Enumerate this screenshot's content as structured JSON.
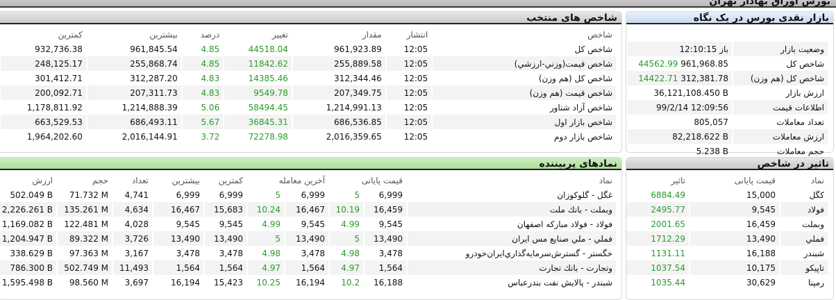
{
  "title": "بورس اوراق بهادار تهران",
  "colors": {
    "positive": "#2a9a2a"
  },
  "selected_indices": {
    "title": "شاخص های منتخب",
    "headers": [
      "شاخص",
      "انتشار",
      "مقدار",
      "تغییر",
      "درصد",
      "بیشترین",
      "کمترین"
    ],
    "rows": [
      [
        "شاخص کل",
        "12:05",
        "961,923.89",
        "44518.04",
        "4.85",
        "961,845.54",
        "932,736.38"
      ],
      [
        "شاخص قيمت(وزني-ارزشي)",
        "12:05",
        "255,889.58",
        "11842.62",
        "4.85",
        "255,868.74",
        "248,125.17"
      ],
      [
        "شاخص کل (هم وزن)",
        "12:05",
        "312,344.46",
        "14385.46",
        "4.83",
        "312,287.20",
        "301,412.71"
      ],
      [
        "شاخص قيمت (هم وزن)",
        "12:05",
        "207,349.75",
        "9549.78",
        "4.83",
        "207,311.73",
        "200,092.71"
      ],
      [
        "شاخص آزاد شناور",
        "12:05",
        "1,214,991.13",
        "58494.45",
        "5.06",
        "1,214,888.39",
        "1,178,811.92"
      ],
      [
        "شاخص بازار اول",
        "12:05",
        "686,536.85",
        "36845.31",
        "5.67",
        "686,493.11",
        "663,529.53"
      ],
      [
        "شاخص بازار دوم",
        "12:05",
        "2,016,359.65",
        "72278.98",
        "3.72",
        "2,016,144.91",
        "1,964,202.60"
      ]
    ]
  },
  "market_glance": {
    "title": "بازار نقدی بورس در یک نگاه",
    "rows": [
      {
        "label": "وضعيت بازار",
        "value": "باز 12:10:15",
        "change": ""
      },
      {
        "label": "شاخص کل",
        "value": "961,968.85",
        "change": "44562.99"
      },
      {
        "label": "شاخص کل (هم وزن)",
        "value": "312,381.78",
        "change": "14422.71"
      },
      {
        "label": "ارزش بازار",
        "value": "36,121,108.450 B",
        "change": ""
      },
      {
        "label": "اطلاعات قيمت",
        "value": "99/2/14 12:09:56",
        "change": ""
      },
      {
        "label": "تعداد معاملات",
        "value": "805,057",
        "change": ""
      },
      {
        "label": "ارزش معاملات",
        "value": "82,218.622 B",
        "change": ""
      },
      {
        "label": "حجم معاملات",
        "value": "5.238 B",
        "change": ""
      }
    ]
  },
  "top_symbols": {
    "title": "نمادهای پربیننده",
    "headers": [
      "نماد",
      "قیمت پایانی",
      "",
      "آخرین معامله",
      "",
      "کمترین",
      "بیشترین",
      "تعداد",
      "حجم",
      "ارزش"
    ],
    "rows": [
      [
        "غگل - گلوكوزان",
        "6,999",
        "5",
        "6,999",
        "5",
        "6,999",
        "6,999",
        "4,741",
        "71.732 M",
        "502.049 B"
      ],
      [
        "وبملت - بانك ملت",
        "16,459",
        "10.19",
        "16,467",
        "10.24",
        "15,683",
        "16,467",
        "4,634",
        "135.261 M",
        "2,226.261 B"
      ],
      [
        "فولاد - فولاد مباركه اصفهان",
        "9,545",
        "4.99",
        "9,545",
        "4.99",
        "9,545",
        "9,545",
        "4,028",
        "122.481 M",
        "1,169.082 B"
      ],
      [
        "فملي - ملي صنايع مس ايران",
        "13,490",
        "5",
        "13,490",
        "5",
        "13,490",
        "13,490",
        "3,726",
        "89.322 M",
        "1,204.947 B"
      ],
      [
        "خگستر - گسترش‌سرمايه‌گذاري‌ايران‌خودرو",
        "3,478",
        "4.98",
        "3,478",
        "4.98",
        "3,478",
        "3,478",
        "3,167",
        "97.363 M",
        "338.629 B"
      ],
      [
        "وتجارت - بانك تجارت",
        "1,564",
        "4.97",
        "1,564",
        "4.97",
        "1,564",
        "1,564",
        "11,493",
        "502.749 M",
        "786.300 B"
      ],
      [
        "شبندر - پالايش نفت بندرعباس",
        "16,188",
        "10.2",
        "16,194",
        "10.25",
        "15,423",
        "16,194",
        "3,697",
        "98.560 M",
        "1,595.498 B"
      ]
    ]
  },
  "index_impact": {
    "title": "تاثیر در شاخص",
    "headers": [
      "نماد",
      "قیمت پایانی",
      "تاثیر"
    ],
    "rows": [
      [
        "كگل",
        "15,000",
        "6884.49"
      ],
      [
        "فولاد",
        "9,545",
        "2495.77"
      ],
      [
        "وبملت",
        "16,459",
        "2001.65"
      ],
      [
        "فملي",
        "13,490",
        "1712.29"
      ],
      [
        "شبندر",
        "16,188",
        "1131.11"
      ],
      [
        "تاپيكو",
        "10,175",
        "1037.54"
      ],
      [
        "رمپنا",
        "30,629",
        "1035.44"
      ]
    ]
  }
}
